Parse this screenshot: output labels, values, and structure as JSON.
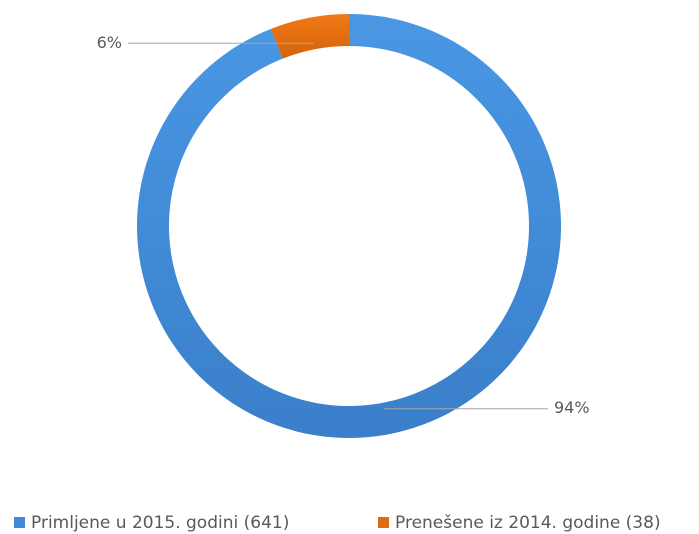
{
  "chart_data": {
    "type": "donut",
    "categories": [
      "Primljene u 2015. godini (641)",
      "Prenešene iz 2014. godine (38)"
    ],
    "values": [
      94,
      6
    ],
    "value_labels": [
      "94%",
      "6%"
    ],
    "colors": [
      "#4189d8",
      "#e06c10"
    ],
    "legend": "bottom"
  }
}
